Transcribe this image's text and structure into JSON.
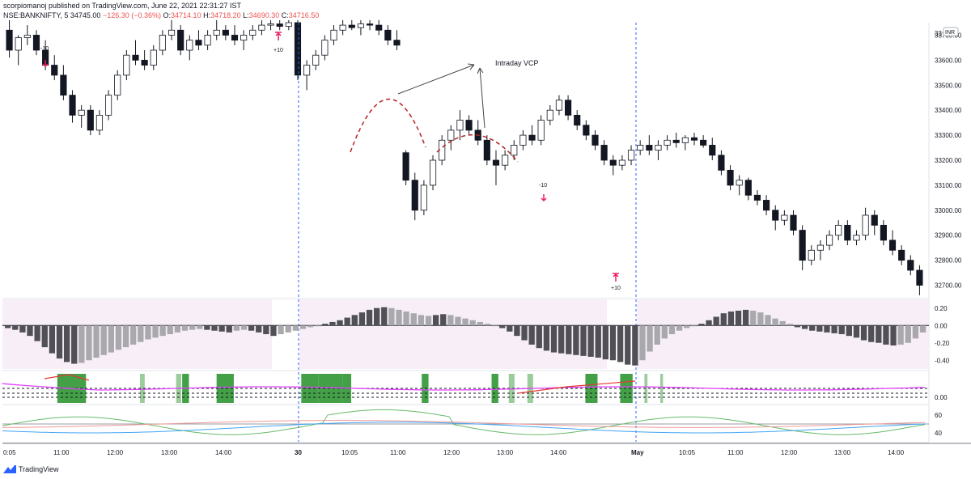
{
  "header": {
    "line1": "scorpiomanoj published on TradingView.com, June 22, 2021 22:31:27 IST",
    "symbol": "NSE:BANKNIFTY, 5",
    "last": "34745.00",
    "change": "−126.30 (−0.36%)",
    "open_label": "O:",
    "open": "34714.10",
    "high_label": "H:",
    "high": "34718.20",
    "low_label": "L:",
    "low": "34690.30",
    "close_label": "C:",
    "close": "34716.50"
  },
  "footer": {
    "brand": "TradingView"
  },
  "colors": {
    "candle_up": "#ffffff",
    "candle_down": "#131722",
    "vcp_dash": "#b22222",
    "session_line": "#2962ff",
    "hist_dark": "#505056",
    "hist_light": "#a9a9ad",
    "hist_bg": "#f7eef7",
    "bar_green": "#43a047",
    "bar_green_light": "#9ccc9c",
    "magenta": "#e040fb",
    "red_line": "#e53935",
    "osc_green": "#66bb6a",
    "osc_blue": "#42a5f5",
    "osc_red": "#ef9a9a",
    "arrow_red": "#e91e63"
  },
  "chart_data": [
    {
      "type": "candlestick",
      "title": "",
      "price_axis_ticks": [
        "33700.00",
        "33600.00",
        "33500.00",
        "33400.00",
        "33300.00",
        "33200.00",
        "33100.00",
        "33000.00",
        "32900.00",
        "32800.00",
        "32700.00"
      ],
      "price_axis_top_label": "33",
      "currency_badge": "INR",
      "ylim": [
        32650,
        33750
      ],
      "time_axis_ticks": [
        "0:05",
        "11:00",
        "12:00",
        "13:00",
        "14:00",
        "30",
        "10:05",
        "11:00",
        "12:00",
        "13:00",
        "14:00",
        "May",
        "10:05",
        "11:00",
        "12:00",
        "13:00",
        "14:00"
      ],
      "annotations": [
        "Intraday VCP",
        "-10",
        "+10",
        "-10",
        "+10"
      ],
      "candles": [
        {
          "o": 33720,
          "h": 33760,
          "l": 33610,
          "c": 33640
        },
        {
          "o": 33640,
          "h": 33700,
          "l": 33580,
          "c": 33690
        },
        {
          "o": 33690,
          "h": 33740,
          "l": 33660,
          "c": 33700
        },
        {
          "o": 33700,
          "h": 33720,
          "l": 33620,
          "c": 33640
        },
        {
          "o": 33640,
          "h": 33680,
          "l": 33560,
          "c": 33580
        },
        {
          "o": 33580,
          "h": 33620,
          "l": 33520,
          "c": 33540
        },
        {
          "o": 33540,
          "h": 33580,
          "l": 33440,
          "c": 33460
        },
        {
          "o": 33460,
          "h": 33480,
          "l": 33350,
          "c": 33380
        },
        {
          "o": 33380,
          "h": 33420,
          "l": 33330,
          "c": 33400
        },
        {
          "o": 33400,
          "h": 33420,
          "l": 33300,
          "c": 33320
        },
        {
          "o": 33320,
          "h": 33400,
          "l": 33300,
          "c": 33380
        },
        {
          "o": 33380,
          "h": 33480,
          "l": 33360,
          "c": 33460
        },
        {
          "o": 33460,
          "h": 33560,
          "l": 33440,
          "c": 33540
        },
        {
          "o": 33540,
          "h": 33640,
          "l": 33520,
          "c": 33620
        },
        {
          "o": 33620,
          "h": 33680,
          "l": 33580,
          "c": 33600
        },
        {
          "o": 33600,
          "h": 33640,
          "l": 33560,
          "c": 33580
        },
        {
          "o": 33580,
          "h": 33660,
          "l": 33560,
          "c": 33640
        },
        {
          "o": 33640,
          "h": 33720,
          "l": 33620,
          "c": 33700
        },
        {
          "o": 33700,
          "h": 33760,
          "l": 33680,
          "c": 33720
        },
        {
          "o": 33720,
          "h": 33740,
          "l": 33620,
          "c": 33640
        },
        {
          "o": 33640,
          "h": 33700,
          "l": 33600,
          "c": 33680
        },
        {
          "o": 33680,
          "h": 33720,
          "l": 33640,
          "c": 33660
        },
        {
          "o": 33660,
          "h": 33720,
          "l": 33640,
          "c": 33700
        },
        {
          "o": 33700,
          "h": 33760,
          "l": 33680,
          "c": 33720
        },
        {
          "o": 33720,
          "h": 33740,
          "l": 33680,
          "c": 33700
        },
        {
          "o": 33700,
          "h": 33740,
          "l": 33660,
          "c": 33680
        },
        {
          "o": 33680,
          "h": 33720,
          "l": 33640,
          "c": 33700
        },
        {
          "o": 33700,
          "h": 33740,
          "l": 33680,
          "c": 33720
        },
        {
          "o": 33720,
          "h": 33760,
          "l": 33700,
          "c": 33740
        },
        {
          "o": 33740,
          "h": 33760,
          "l": 33720,
          "c": 33745
        },
        {
          "o": 33745,
          "h": 33760,
          "l": 33720,
          "c": 33735
        },
        {
          "o": 33735,
          "h": 33760,
          "l": 33720,
          "c": 33750
        },
        {
          "o": 33750,
          "h": 33760,
          "l": 33520,
          "c": 33540
        },
        {
          "o": 33540,
          "h": 33600,
          "l": 33480,
          "c": 33580
        },
        {
          "o": 33580,
          "h": 33640,
          "l": 33560,
          "c": 33620
        },
        {
          "o": 33620,
          "h": 33700,
          "l": 33600,
          "c": 33680
        },
        {
          "o": 33680,
          "h": 33740,
          "l": 33660,
          "c": 33720
        },
        {
          "o": 33720,
          "h": 33760,
          "l": 33700,
          "c": 33740
        },
        {
          "o": 33740,
          "h": 33760,
          "l": 33720,
          "c": 33730
        },
        {
          "o": 33730,
          "h": 33760,
          "l": 33700,
          "c": 33745
        },
        {
          "o": 33745,
          "h": 33760,
          "l": 33720,
          "c": 33740
        },
        {
          "o": 33740,
          "h": 33760,
          "l": 33700,
          "c": 33720
        },
        {
          "o": 33720,
          "h": 33740,
          "l": 33660,
          "c": 33680
        },
        {
          "o": 33680,
          "h": 33720,
          "l": 33640,
          "c": 33660
        },
        {
          "o": 33230,
          "h": 33240,
          "l": 33100,
          "c": 33120
        },
        {
          "o": 33120,
          "h": 33150,
          "l": 32960,
          "c": 33000
        },
        {
          "o": 33000,
          "h": 33120,
          "l": 32980,
          "c": 33100
        },
        {
          "o": 33100,
          "h": 33220,
          "l": 33080,
          "c": 33200
        },
        {
          "o": 33200,
          "h": 33300,
          "l": 33180,
          "c": 33280
        },
        {
          "o": 33280,
          "h": 33340,
          "l": 33240,
          "c": 33320
        },
        {
          "o": 33320,
          "h": 33400,
          "l": 33280,
          "c": 33360
        },
        {
          "o": 33360,
          "h": 33380,
          "l": 33300,
          "c": 33320
        },
        {
          "o": 33320,
          "h": 33360,
          "l": 33260,
          "c": 33280
        },
        {
          "o": 33280,
          "h": 33300,
          "l": 33180,
          "c": 33200
        },
        {
          "o": 33200,
          "h": 33240,
          "l": 33100,
          "c": 33180
        },
        {
          "o": 33180,
          "h": 33240,
          "l": 33160,
          "c": 33220
        },
        {
          "o": 33220,
          "h": 33280,
          "l": 33200,
          "c": 33260
        },
        {
          "o": 33260,
          "h": 33320,
          "l": 33240,
          "c": 33300
        },
        {
          "o": 33300,
          "h": 33340,
          "l": 33260,
          "c": 33280
        },
        {
          "o": 33280,
          "h": 33380,
          "l": 33260,
          "c": 33360
        },
        {
          "o": 33360,
          "h": 33420,
          "l": 33340,
          "c": 33400
        },
        {
          "o": 33400,
          "h": 33460,
          "l": 33380,
          "c": 33440
        },
        {
          "o": 33440,
          "h": 33460,
          "l": 33360,
          "c": 33380
        },
        {
          "o": 33380,
          "h": 33400,
          "l": 33320,
          "c": 33340
        },
        {
          "o": 33340,
          "h": 33360,
          "l": 33280,
          "c": 33300
        },
        {
          "o": 33300,
          "h": 33320,
          "l": 33240,
          "c": 33260
        },
        {
          "o": 33260,
          "h": 33280,
          "l": 33180,
          "c": 33200
        },
        {
          "o": 33200,
          "h": 33220,
          "l": 33140,
          "c": 33180
        },
        {
          "o": 33180,
          "h": 33220,
          "l": 33160,
          "c": 33200
        },
        {
          "o": 33200,
          "h": 33260,
          "l": 33180,
          "c": 33240
        },
        {
          "o": 33240,
          "h": 33280,
          "l": 33220,
          "c": 33260
        },
        {
          "o": 33260,
          "h": 33300,
          "l": 33220,
          "c": 33240
        },
        {
          "o": 33240,
          "h": 33280,
          "l": 33200,
          "c": 33260
        },
        {
          "o": 33260,
          "h": 33300,
          "l": 33240,
          "c": 33280
        },
        {
          "o": 33280,
          "h": 33310,
          "l": 33250,
          "c": 33270
        },
        {
          "o": 33270,
          "h": 33300,
          "l": 33240,
          "c": 33290
        },
        {
          "o": 33290,
          "h": 33310,
          "l": 33260,
          "c": 33280
        },
        {
          "o": 33280,
          "h": 33300,
          "l": 33250,
          "c": 33260
        },
        {
          "o": 33260,
          "h": 33290,
          "l": 33200,
          "c": 33220
        },
        {
          "o": 33220,
          "h": 33240,
          "l": 33140,
          "c": 33160
        },
        {
          "o": 33160,
          "h": 33180,
          "l": 33080,
          "c": 33100
        },
        {
          "o": 33100,
          "h": 33140,
          "l": 33060,
          "c": 33120
        },
        {
          "o": 33120,
          "h": 33130,
          "l": 33040,
          "c": 33060
        },
        {
          "o": 33060,
          "h": 33080,
          "l": 33020,
          "c": 33040
        },
        {
          "o": 33040,
          "h": 33060,
          "l": 32980,
          "c": 33000
        },
        {
          "o": 33000,
          "h": 33020,
          "l": 32920,
          "c": 32960
        },
        {
          "o": 32960,
          "h": 33000,
          "l": 32940,
          "c": 32980
        },
        {
          "o": 32980,
          "h": 33000,
          "l": 32900,
          "c": 32920
        },
        {
          "o": 32920,
          "h": 32940,
          "l": 32760,
          "c": 32800
        },
        {
          "o": 32800,
          "h": 32860,
          "l": 32780,
          "c": 32840
        },
        {
          "o": 32840,
          "h": 32880,
          "l": 32800,
          "c": 32860
        },
        {
          "o": 32860,
          "h": 32920,
          "l": 32840,
          "c": 32900
        },
        {
          "o": 32900,
          "h": 32960,
          "l": 32880,
          "c": 32940
        },
        {
          "o": 32940,
          "h": 32960,
          "l": 32860,
          "c": 32880
        },
        {
          "o": 32880,
          "h": 32920,
          "l": 32860,
          "c": 32900
        },
        {
          "o": 32900,
          "h": 33010,
          "l": 32880,
          "c": 32980
        },
        {
          "o": 32980,
          "h": 33000,
          "l": 32900,
          "c": 32940
        },
        {
          "o": 32940,
          "h": 32960,
          "l": 32860,
          "c": 32880
        },
        {
          "o": 32880,
          "h": 32920,
          "l": 32820,
          "c": 32840
        },
        {
          "o": 32840,
          "h": 32860,
          "l": 32780,
          "c": 32800
        },
        {
          "o": 32800,
          "h": 32820,
          "l": 32740,
          "c": 32760
        },
        {
          "o": 32760,
          "h": 32780,
          "l": 32660,
          "c": 32700
        }
      ]
    },
    {
      "type": "bar",
      "title": "",
      "yticks": [
        "0.20",
        "0.00",
        "-0.20",
        "-0.40"
      ],
      "ylim": [
        -0.5,
        0.3
      ],
      "values": [
        -0.03,
        -0.05,
        -0.08,
        -0.12,
        -0.18,
        -0.25,
        -0.32,
        -0.38,
        -0.42,
        -0.44,
        -0.43,
        -0.4,
        -0.37,
        -0.34,
        -0.31,
        -0.28,
        -0.25,
        -0.22,
        -0.19,
        -0.16,
        -0.14,
        -0.12,
        -0.1,
        -0.08,
        -0.06,
        -0.05,
        -0.04,
        -0.05,
        -0.06,
        -0.07,
        -0.08,
        -0.06,
        -0.05,
        -0.06,
        -0.08,
        -0.1,
        -0.12,
        -0.1,
        -0.08,
        -0.06,
        -0.04,
        -0.02,
        0.0,
        0.02,
        0.04,
        0.06,
        0.09,
        0.12,
        0.15,
        0.18,
        0.2,
        0.21,
        0.2,
        0.18,
        0.16,
        0.14,
        0.12,
        0.11,
        0.12,
        0.13,
        0.12,
        0.1,
        0.08,
        0.06,
        0.04,
        0.02,
        0.0,
        -0.03,
        -0.07,
        -0.12,
        -0.17,
        -0.22,
        -0.26,
        -0.29,
        -0.31,
        -0.32,
        -0.33,
        -0.34,
        -0.35,
        -0.36,
        -0.37,
        -0.39,
        -0.4,
        -0.42,
        -0.45,
        -0.46,
        -0.4,
        -0.3,
        -0.22,
        -0.15,
        -0.1,
        -0.06,
        -0.03,
        -0.01,
        0.02,
        0.06,
        0.1,
        0.14,
        0.16,
        0.17,
        0.18,
        0.17,
        0.15,
        0.12,
        0.08,
        0.05,
        0.02,
        -0.02,
        -0.04,
        -0.06,
        -0.07,
        -0.08,
        -0.09,
        -0.1,
        -0.12,
        -0.14,
        -0.17,
        -0.19,
        -0.2,
        -0.22,
        -0.23,
        -0.22,
        -0.2,
        -0.15,
        -0.08
      ]
    },
    {
      "type": "line",
      "title": "",
      "yticks": [
        "0.00"
      ],
      "green_blocks": [
        [
          0.085,
          0.17
        ],
        [
          0.33,
          0.344
        ],
        [
          0.437,
          0.452
        ],
        [
          0.455,
          0.475
        ],
        [
          0.557,
          0.608
        ],
        [
          0.808,
          0.858
        ],
        [
          0.858,
          0.931
        ],
        [
          0.931,
          0.956
        ],
        [
          1.165,
          1.185
        ],
        [
          1.372,
          1.392
        ],
        [
          1.423,
          1.44
        ],
        [
          1.478,
          1.495
        ],
        [
          1.65,
          1.686
        ],
        [
          1.753,
          1.79
        ],
        [
          1.825,
          1.834
        ],
        [
          1.872,
          1.88
        ]
      ]
    },
    {
      "type": "line",
      "title": "",
      "yticks": [
        "60",
        "40"
      ],
      "ylim": [
        30,
        70
      ]
    }
  ]
}
